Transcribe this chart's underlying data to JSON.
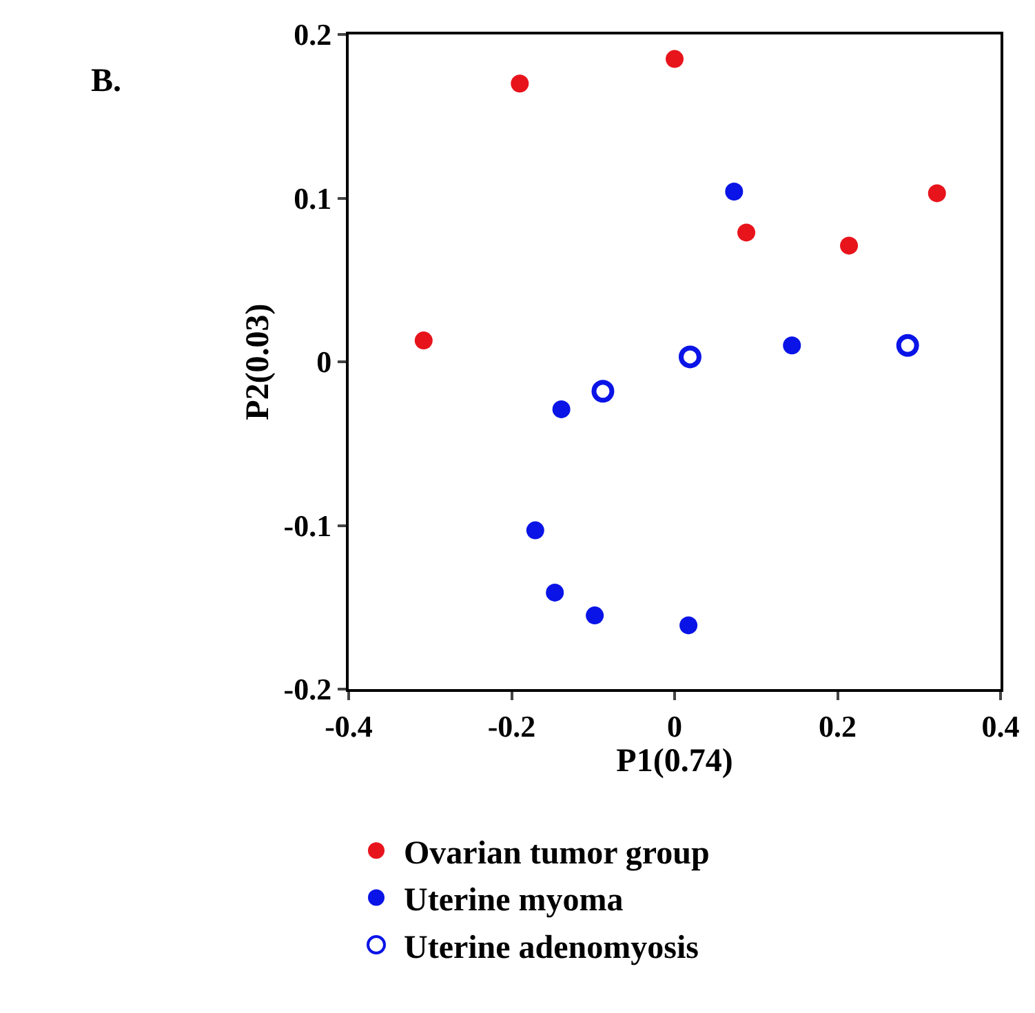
{
  "chart_data": {
    "type": "scatter",
    "xlabel": "P1(0.74)",
    "ylabel": "P2(0.03)",
    "annotations": [
      "B."
    ],
    "xlim": [
      -0.4,
      0.4
    ],
    "xticks": [
      -0.4,
      -0.2,
      0,
      0.2,
      0.4
    ],
    "ylim": [
      -0.2,
      0.2
    ],
    "yticks": [
      -0.2,
      -0.1,
      0,
      0.1,
      0.2
    ],
    "legend": "bottom",
    "marker": "circle",
    "series": [
      {
        "name": "Ovarian tumor group",
        "color": "#e8141c",
        "x": [
          -0.19,
          0,
          0.088,
          0.214,
          0.322,
          -0.308
        ],
        "values": [
          0.17,
          0.185,
          0.079,
          0.071,
          0.103,
          0.013
        ]
      },
      {
        "name": "Uterine myoma",
        "color": "#0a14e6",
        "x": [
          0.073,
          0.144,
          -0.139,
          -0.171,
          -0.147,
          -0.098,
          0.017
        ],
        "values": [
          0.104,
          0.01,
          -0.029,
          -0.103,
          -0.141,
          -0.155,
          -0.161
        ]
      },
      {
        "name": "Uterine adenomyosis",
        "color": "#0a14e6",
        "marker": "open circle",
        "x": [
          -0.088,
          0.019,
          0.286
        ],
        "values": [
          -0.018,
          0.003,
          0.01
        ]
      }
    ]
  }
}
